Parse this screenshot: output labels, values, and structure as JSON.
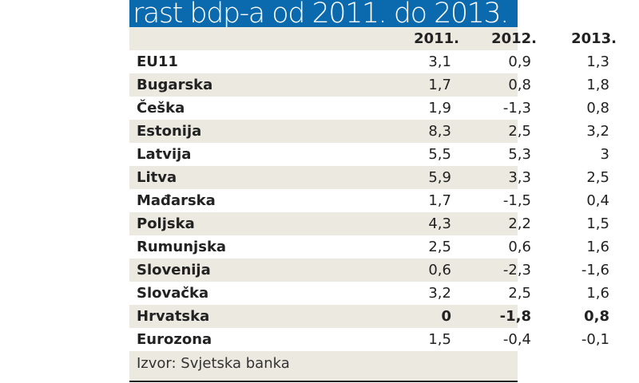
{
  "title": "rast bdp-a od 2011. do 2013.",
  "source": "Izvor: Svjetska banka",
  "colors": {
    "title_bar": "#0b6aae",
    "stripe": "#ebe9e0"
  },
  "chart_data": {
    "type": "table",
    "title": "rast bdp-a od 2011. do 2013.",
    "columns": [
      "2011.",
      "2012.",
      "2013."
    ],
    "rows": [
      {
        "name": "EU11",
        "values": [
          "3,1",
          "0,9",
          "1,3"
        ]
      },
      {
        "name": "Bugarska",
        "values": [
          "1,7",
          "0,8",
          "1,8"
        ]
      },
      {
        "name": "Češka",
        "values": [
          "1,9",
          "-1,3",
          "0,8"
        ]
      },
      {
        "name": "Estonija",
        "values": [
          "8,3",
          "2,5",
          "3,2"
        ]
      },
      {
        "name": "Latvija",
        "values": [
          "5,5",
          "5,3",
          "3"
        ]
      },
      {
        "name": "Litva",
        "values": [
          "5,9",
          "3,3",
          "2,5"
        ]
      },
      {
        "name": "Mađarska",
        "values": [
          "1,7",
          "-1,5",
          "0,4"
        ]
      },
      {
        "name": "Poljska",
        "values": [
          "4,3",
          "2,2",
          "1,5"
        ]
      },
      {
        "name": "Rumunjska",
        "values": [
          "2,5",
          "0,6",
          "1,6"
        ]
      },
      {
        "name": "Slovenija",
        "values": [
          "0,6",
          "-2,3",
          "-1,6"
        ]
      },
      {
        "name": "Slovačka",
        "values": [
          "3,2",
          "2,5",
          "1,6"
        ]
      },
      {
        "name": "Hrvatska",
        "values": [
          "0",
          "-1,8",
          "0,8"
        ],
        "highlight": true
      },
      {
        "name": "Eurozona",
        "values": [
          "1,5",
          "-0,4",
          "-0,1"
        ]
      }
    ]
  }
}
